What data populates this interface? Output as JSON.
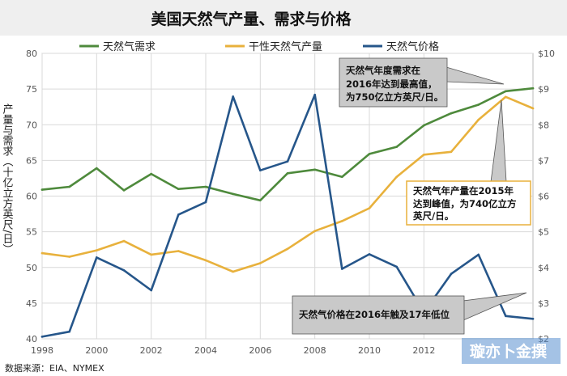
{
  "title": "美国天然气产量、需求与价格",
  "source": "数据来源：EIA、NYMEX",
  "watermark": "璇亦卜金撰",
  "annotations": {
    "demand_peak": [
      "天然气年度需求在",
      "2016年达到最高值，",
      "为750亿立方英尺/日。"
    ],
    "production_peak": [
      "天然气年产量在2015年",
      "达到峰值，为740亿立方",
      "英尺/日。"
    ],
    "price_low": [
      "天然气价格在2016年触及17年低位"
    ]
  },
  "chart_data": {
    "type": "line",
    "x": [
      1998,
      1999,
      2000,
      2001,
      2002,
      2003,
      2004,
      2005,
      2006,
      2007,
      2008,
      2009,
      2010,
      2011,
      2012,
      2013,
      2014,
      2015,
      2016
    ],
    "x_ticks": [
      "1998",
      "2000",
      "2002",
      "2004",
      "2006",
      "2008",
      "2010",
      "2012"
    ],
    "ylabel": "产量与需求（十亿立方英尺/日）",
    "ylim": [
      40,
      80
    ],
    "y_ticks": [
      "40",
      "45",
      "50",
      "55",
      "60",
      "65",
      "70",
      "75",
      "80"
    ],
    "y2lim": [
      2,
      10
    ],
    "y2_ticks": [
      "$2",
      "$3",
      "$4",
      "$5",
      "$6",
      "$7",
      "$8",
      "$9",
      "$10"
    ],
    "grid": true,
    "legend_position": "top",
    "series": [
      {
        "name": "天然气需求",
        "color": "#4e8a3c",
        "axis": "left",
        "values": [
          60.9,
          61.3,
          63.9,
          60.8,
          63.1,
          61.0,
          61.3,
          60.3,
          59.4,
          63.2,
          63.7,
          62.7,
          65.9,
          66.9,
          69.9,
          71.6,
          72.8,
          74.7,
          75.1
        ]
      },
      {
        "name": "干性天然气产量",
        "color": "#e8b13c",
        "axis": "left",
        "values": [
          52.0,
          51.5,
          52.4,
          53.7,
          51.8,
          52.3,
          51.0,
          49.4,
          50.6,
          52.6,
          55.1,
          56.5,
          58.3,
          62.7,
          65.8,
          66.2,
          70.7,
          73.9,
          72.3
        ]
      },
      {
        "name": "天然气价格",
        "color": "#26568a",
        "axis": "right",
        "values": [
          2.06,
          2.2,
          4.28,
          3.92,
          3.36,
          5.48,
          5.83,
          8.79,
          6.72,
          6.97,
          8.84,
          3.96,
          4.37,
          4.02,
          2.74,
          3.82,
          4.36,
          2.64,
          2.56
        ]
      }
    ]
  }
}
